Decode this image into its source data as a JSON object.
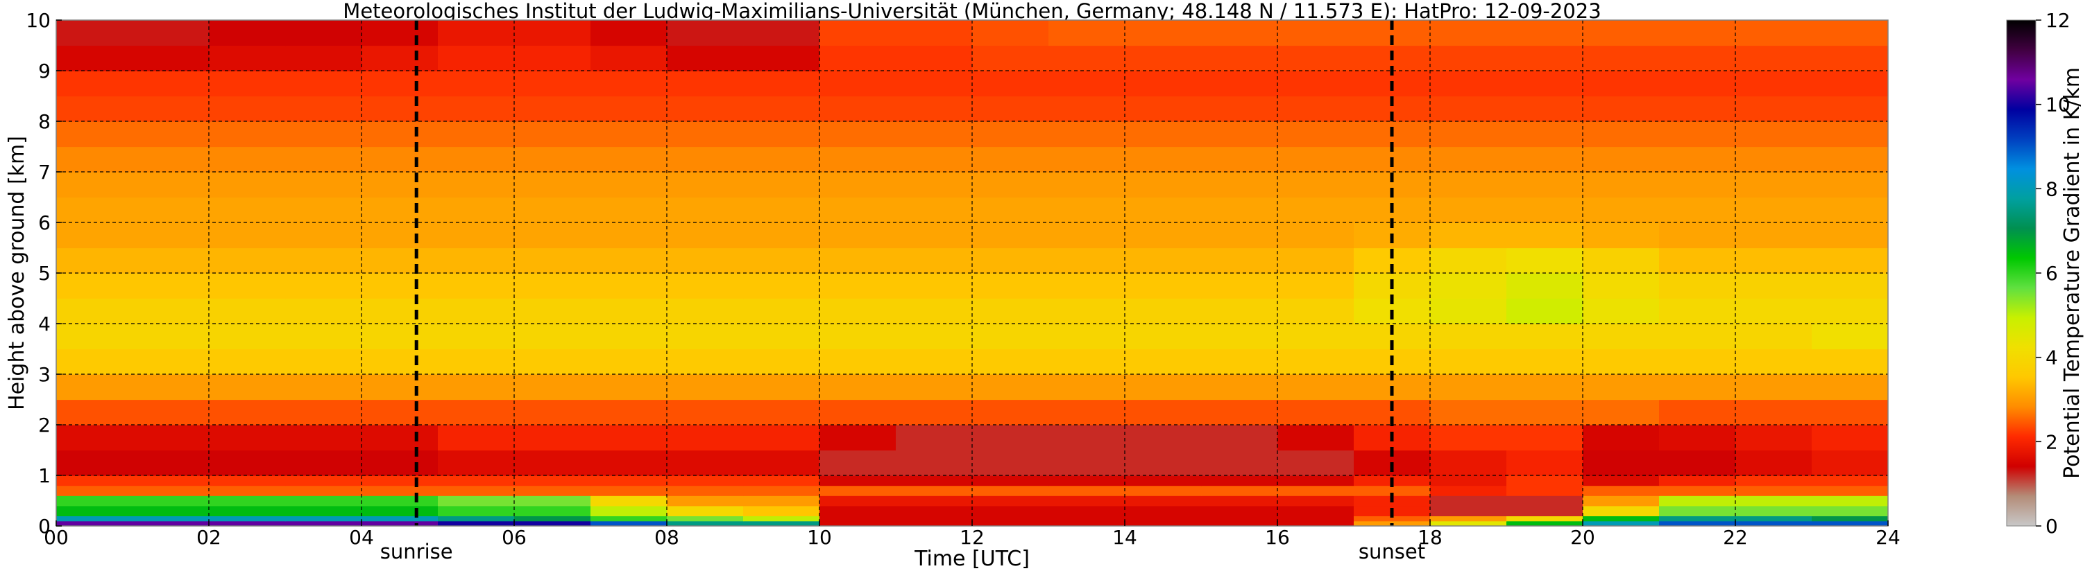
{
  "figure": {
    "title": "Meteorologisches Institut der Ludwig-Maximilians-Universität (München, Germany; 48.148 N / 11.573 E):    HatPro: 12-09-2023"
  },
  "chart_data": {
    "type": "heatmap",
    "title": "Meteorologisches Institut der Ludwig-Maximilians-Universität (München, Germany; 48.148 N / 11.573 E):    HatPro: 12-09-2023",
    "xlabel": "Time [UTC]",
    "ylabel": "Height above ground [km]",
    "xlim": [
      0,
      24
    ],
    "ylim": [
      0,
      10
    ],
    "x_ticks": [
      "00",
      "02",
      "04",
      "06",
      "08",
      "10",
      "12",
      "14",
      "16",
      "18",
      "20",
      "22",
      "24"
    ],
    "y_ticks": [
      "0",
      "1",
      "2",
      "3",
      "4",
      "5",
      "6",
      "7",
      "8",
      "9",
      "10"
    ],
    "grid": true,
    "colorbar": {
      "label": "Potential Temperature Gradient in K/km",
      "range": [
        0,
        12
      ],
      "ticks": [
        "0",
        "2",
        "4",
        "6",
        "8",
        "10",
        "12"
      ],
      "colors": [
        "#c8c8c8",
        "#b48c78",
        "#d00000",
        "#ff2a00",
        "#ff8c00",
        "#ffc800",
        "#f0e000",
        "#c8f000",
        "#60e040",
        "#00c800",
        "#009050",
        "#00a0a0",
        "#0090e0",
        "#0040c0",
        "#0000a0",
        "#7000a0",
        "#400040",
        "#000000"
      ]
    },
    "annotations": [
      {
        "label": "sunrise",
        "time": 4.72
      },
      {
        "label": "sunset",
        "time": 17.5
      }
    ],
    "x_bins": [
      0,
      1,
      2,
      3,
      4,
      5,
      6,
      7,
      8,
      9,
      10,
      11,
      12,
      13,
      14,
      15,
      16,
      17,
      18,
      19,
      20,
      21,
      22,
      23,
      24
    ],
    "y_bins": [
      0,
      0.1,
      0.2,
      0.4,
      0.6,
      0.8,
      1.0,
      1.5,
      2.0,
      2.5,
      3.0,
      3.5,
      4.0,
      4.5,
      5.0,
      5.5,
      6.0,
      6.5,
      7.0,
      7.5,
      8.0,
      8.5,
      9.0,
      9.5,
      10.0
    ],
    "values": [
      [
        10.5,
        10.5,
        10.5,
        10.5,
        10.5,
        10.0,
        10.0,
        9.0,
        7.5,
        7.5,
        1.5,
        1.5,
        1.5,
        1.5,
        1.5,
        1.5,
        1.5,
        3.0,
        4.5,
        6.5,
        8.0,
        9.0,
        9.0,
        9.0
      ],
      [
        8.0,
        8.0,
        8.0,
        8.0,
        8.0,
        7.5,
        7.0,
        6.0,
        5.5,
        5.0,
        1.5,
        1.5,
        1.5,
        1.5,
        1.5,
        1.5,
        1.5,
        2.5,
        3.0,
        4.0,
        6.5,
        7.5,
        7.5,
        7.0
      ],
      [
        6.5,
        6.5,
        6.5,
        6.5,
        6.5,
        6.0,
        6.0,
        5.0,
        4.0,
        3.5,
        1.5,
        1.5,
        1.5,
        1.5,
        1.5,
        1.5,
        1.5,
        2.0,
        1.2,
        1.2,
        4.0,
        5.5,
        5.5,
        5.5
      ],
      [
        6.0,
        6.0,
        6.0,
        6.0,
        6.0,
        5.5,
        5.5,
        4.0,
        3.0,
        3.0,
        1.8,
        1.8,
        1.8,
        1.8,
        1.8,
        1.8,
        1.8,
        2.0,
        1.2,
        1.2,
        3.0,
        5.0,
        5.0,
        5.0
      ],
      [
        2.5,
        2.5,
        2.5,
        2.5,
        2.5,
        2.5,
        2.5,
        2.5,
        2.5,
        2.5,
        2.5,
        2.5,
        2.5,
        2.5,
        2.5,
        2.5,
        2.5,
        2.5,
        2.0,
        2.2,
        2.5,
        2.5,
        2.5,
        2.5
      ],
      [
        2.2,
        2.2,
        2.2,
        2.2,
        2.2,
        2.2,
        2.2,
        2.2,
        2.2,
        2.2,
        1.5,
        1.5,
        1.5,
        1.5,
        1.5,
        1.5,
        1.5,
        2.0,
        1.8,
        2.2,
        1.6,
        2.0,
        2.2,
        2.2
      ],
      [
        1.4,
        1.4,
        1.4,
        1.4,
        1.4,
        1.6,
        1.6,
        1.6,
        1.6,
        1.6,
        1.2,
        1.2,
        1.2,
        1.2,
        1.2,
        1.2,
        1.2,
        1.5,
        1.8,
        2.0,
        1.4,
        1.4,
        1.6,
        1.8
      ],
      [
        1.6,
        1.6,
        1.6,
        1.6,
        1.6,
        2.0,
        2.0,
        2.0,
        2.0,
        2.0,
        1.5,
        1.2,
        1.2,
        1.2,
        1.2,
        1.2,
        1.5,
        2.0,
        2.2,
        2.2,
        1.5,
        1.6,
        1.8,
        2.0
      ],
      [
        2.4,
        2.4,
        2.4,
        2.4,
        2.4,
        2.4,
        2.4,
        2.4,
        2.4,
        2.4,
        2.4,
        2.4,
        2.4,
        2.4,
        2.4,
        2.4,
        2.4,
        2.4,
        2.6,
        2.6,
        2.6,
        2.4,
        2.4,
        2.4
      ],
      [
        3.0,
        3.0,
        3.0,
        3.0,
        3.0,
        3.0,
        3.0,
        3.0,
        3.0,
        3.0,
        3.0,
        3.0,
        3.0,
        3.0,
        3.0,
        3.0,
        3.0,
        3.0,
        3.0,
        3.0,
        3.0,
        3.0,
        3.0,
        3.0
      ],
      [
        3.6,
        3.6,
        3.6,
        3.6,
        3.6,
        3.6,
        3.6,
        3.6,
        3.6,
        3.6,
        3.6,
        3.6,
        3.6,
        3.6,
        3.6,
        3.6,
        3.6,
        3.6,
        3.6,
        3.6,
        3.6,
        3.6,
        3.6,
        3.6
      ],
      [
        3.9,
        3.9,
        3.9,
        3.9,
        3.9,
        3.9,
        3.9,
        3.9,
        3.9,
        3.9,
        3.9,
        3.9,
        3.9,
        3.9,
        3.9,
        3.9,
        3.9,
        3.9,
        3.9,
        3.9,
        3.9,
        3.9,
        3.9,
        4.2
      ],
      [
        3.8,
        3.8,
        3.8,
        3.8,
        3.8,
        3.8,
        3.8,
        3.8,
        3.8,
        3.8,
        3.8,
        3.8,
        3.8,
        3.8,
        3.8,
        3.8,
        3.8,
        4.2,
        4.4,
        4.8,
        4.3,
        4.0,
        4.0,
        4.0
      ],
      [
        3.5,
        3.5,
        3.5,
        3.5,
        3.5,
        3.5,
        3.5,
        3.5,
        3.5,
        3.5,
        3.5,
        3.5,
        3.5,
        3.5,
        3.5,
        3.5,
        3.5,
        4.0,
        4.3,
        4.6,
        4.1,
        3.8,
        3.8,
        3.8
      ],
      [
        3.3,
        3.3,
        3.3,
        3.3,
        3.3,
        3.3,
        3.3,
        3.3,
        3.3,
        3.3,
        3.3,
        3.3,
        3.3,
        3.3,
        3.3,
        3.3,
        3.3,
        3.6,
        4.0,
        4.2,
        3.8,
        3.4,
        3.4,
        3.4
      ],
      [
        3.1,
        3.1,
        3.1,
        3.1,
        3.1,
        3.1,
        3.1,
        3.1,
        3.1,
        3.1,
        3.1,
        3.1,
        3.1,
        3.1,
        3.1,
        3.1,
        3.1,
        3.2,
        3.3,
        3.3,
        3.2,
        3.1,
        3.1,
        3.1
      ],
      [
        3.1,
        3.1,
        3.1,
        3.1,
        3.1,
        3.1,
        3.1,
        3.1,
        3.1,
        3.1,
        3.1,
        3.1,
        3.1,
        3.1,
        3.1,
        3.1,
        3.1,
        3.1,
        3.1,
        3.1,
        3.1,
        3.1,
        3.1,
        3.1
      ],
      [
        3.0,
        3.0,
        3.0,
        3.0,
        3.0,
        3.0,
        3.0,
        3.0,
        3.0,
        3.0,
        3.0,
        3.0,
        3.0,
        3.0,
        3.0,
        3.0,
        3.0,
        3.0,
        3.0,
        3.0,
        3.0,
        3.0,
        3.0,
        3.0
      ],
      [
        2.8,
        2.8,
        2.8,
        2.8,
        2.8,
        2.8,
        2.8,
        2.8,
        2.8,
        2.8,
        2.8,
        2.8,
        2.8,
        2.8,
        2.8,
        2.8,
        2.8,
        2.8,
        2.8,
        2.8,
        2.8,
        2.8,
        2.8,
        2.8
      ],
      [
        2.6,
        2.6,
        2.6,
        2.6,
        2.6,
        2.6,
        2.6,
        2.6,
        2.6,
        2.6,
        2.6,
        2.6,
        2.6,
        2.6,
        2.6,
        2.6,
        2.6,
        2.6,
        2.6,
        2.6,
        2.6,
        2.6,
        2.6,
        2.6
      ],
      [
        2.3,
        2.3,
        2.3,
        2.3,
        2.3,
        2.3,
        2.3,
        2.3,
        2.3,
        2.3,
        2.3,
        2.3,
        2.3,
        2.3,
        2.3,
        2.3,
        2.3,
        2.3,
        2.3,
        2.3,
        2.3,
        2.3,
        2.3,
        2.3
      ],
      [
        2.2,
        2.2,
        2.2,
        2.2,
        2.2,
        2.2,
        2.2,
        2.2,
        2.2,
        2.2,
        2.2,
        2.2,
        2.2,
        2.2,
        2.2,
        2.2,
        2.2,
        2.2,
        2.2,
        2.2,
        2.2,
        2.2,
        2.2,
        2.2
      ],
      [
        1.5,
        1.5,
        1.6,
        1.6,
        1.8,
        2.0,
        2.0,
        1.8,
        1.5,
        1.5,
        2.2,
        2.2,
        2.3,
        2.3,
        2.3,
        2.3,
        2.3,
        2.3,
        2.3,
        2.3,
        2.3,
        2.3,
        2.3,
        2.3
      ],
      [
        1.3,
        1.3,
        1.4,
        1.4,
        1.5,
        1.8,
        1.8,
        1.5,
        1.3,
        1.3,
        2.3,
        2.3,
        2.4,
        2.5,
        2.5,
        2.5,
        2.5,
        2.5,
        2.5,
        2.5,
        2.5,
        2.5,
        2.5,
        2.5
      ]
    ]
  }
}
